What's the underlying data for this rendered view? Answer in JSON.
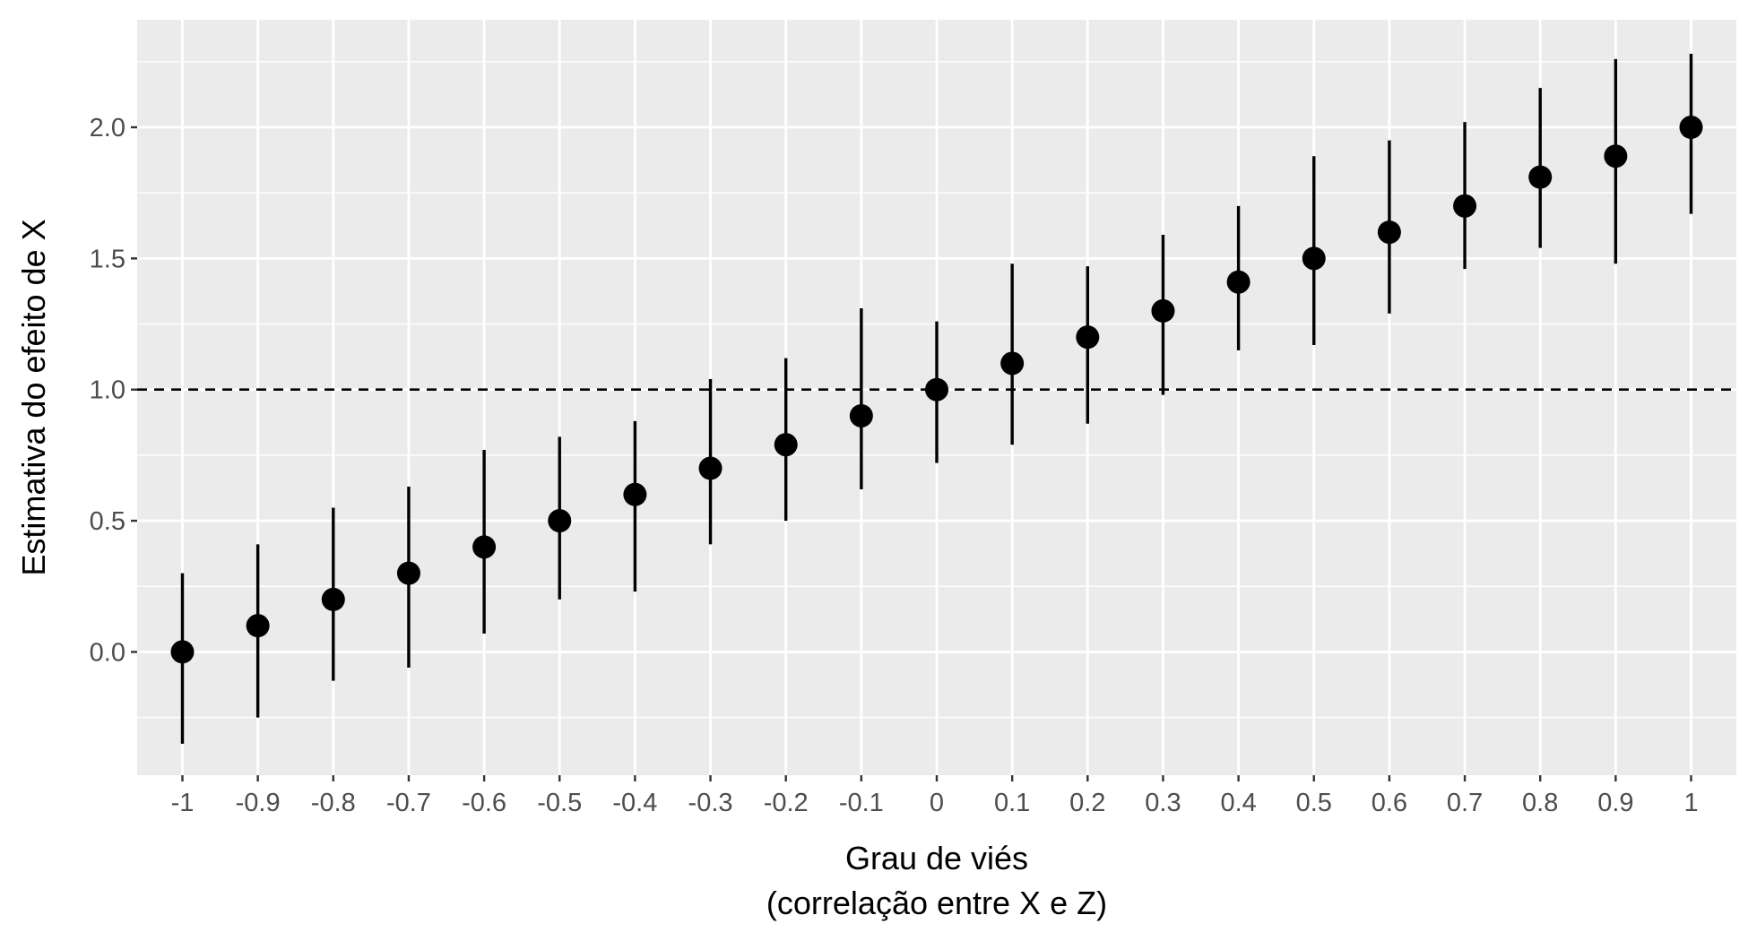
{
  "chart_data": {
    "type": "scatter",
    "title": "",
    "xlabel_line1": "Grau de viés",
    "xlabel_line2": "(correlação entre X e Z)",
    "ylabel": "Estimativa do efeito de X",
    "x": [
      -1,
      -0.9,
      -0.8,
      -0.7,
      -0.6,
      -0.5,
      -0.4,
      -0.3,
      -0.2,
      -0.1,
      0,
      0.1,
      0.2,
      0.3,
      0.4,
      0.5,
      0.6,
      0.7,
      0.8,
      0.9,
      1
    ],
    "x_tick_labels": [
      "-1",
      "-0.9",
      "-0.8",
      "-0.7",
      "-0.6",
      "-0.5",
      "-0.4",
      "-0.3",
      "-0.2",
      "-0.1",
      "0",
      "0.1",
      "0.2",
      "0.3",
      "0.4",
      "0.5",
      "0.6",
      "0.7",
      "0.8",
      "0.9",
      "1"
    ],
    "estimate": [
      0.0,
      0.1,
      0.2,
      0.3,
      0.4,
      0.5,
      0.6,
      0.7,
      0.79,
      0.9,
      1.0,
      1.1,
      1.2,
      1.3,
      1.41,
      1.5,
      1.6,
      1.7,
      1.81,
      1.89,
      2.0
    ],
    "lower": [
      -0.35,
      -0.25,
      -0.11,
      -0.06,
      0.07,
      0.2,
      0.23,
      0.41,
      0.5,
      0.62,
      0.72,
      0.79,
      0.87,
      0.98,
      1.15,
      1.17,
      1.29,
      1.46,
      1.54,
      1.48,
      1.67
    ],
    "upper": [
      0.3,
      0.41,
      0.55,
      0.63,
      0.77,
      0.82,
      0.88,
      1.04,
      1.12,
      1.31,
      1.26,
      1.48,
      1.47,
      1.59,
      1.7,
      1.89,
      1.95,
      2.02,
      2.15,
      2.26,
      2.28
    ],
    "y_ticks": [
      0.0,
      0.5,
      1.0,
      1.5,
      2.0
    ],
    "y_tick_labels": [
      "0.0",
      "0.5",
      "1.0",
      "1.5",
      "2.0"
    ],
    "xlim": [
      -1.06,
      1.06
    ],
    "ylim": [
      -0.47,
      2.41
    ],
    "reference_line": {
      "y": 1.0,
      "style": "dashed"
    },
    "grid": true,
    "panel_background": "#ebebeb",
    "grid_color": "#ffffff",
    "point_color": "#000000"
  }
}
